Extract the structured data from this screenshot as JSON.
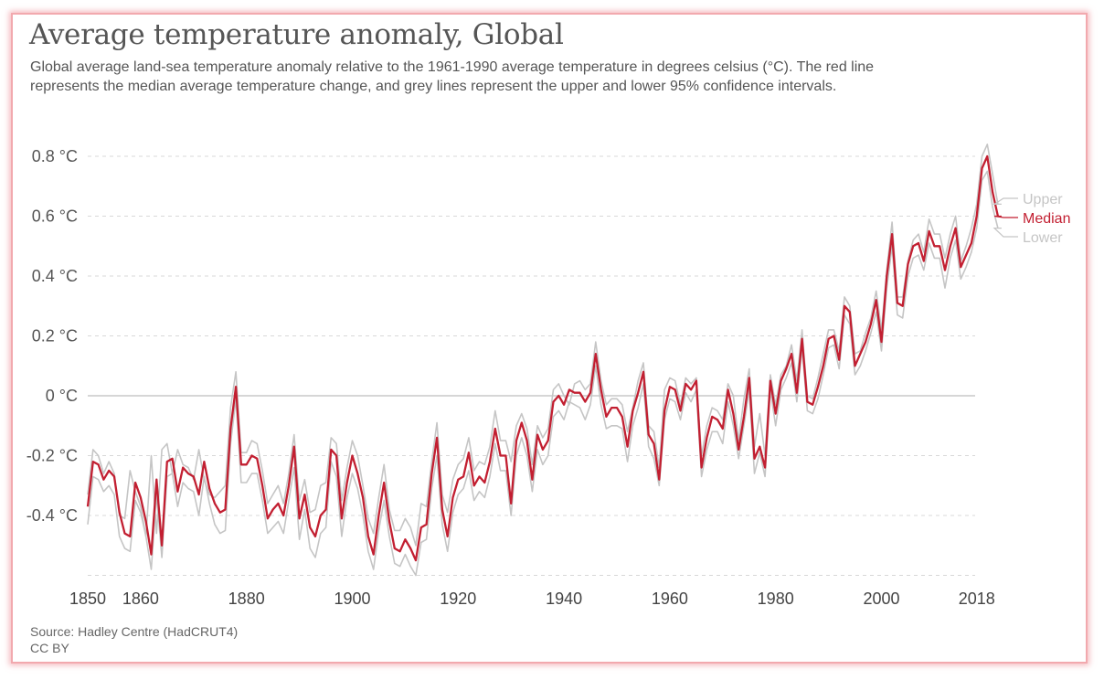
{
  "header": {
    "title": "Average temperature anomaly, Global",
    "subtitle": "Global average land-sea temperature anomaly relative to the 1961-1990 average temperature in degrees celsius (°C). The red line represents the median average temperature change, and grey lines represent the upper and lower 95% confidence intervals."
  },
  "footer": {
    "source": "Source: Hadley Centre (HadCRUT4)",
    "license": "CC BY"
  },
  "colors": {
    "median": "#c21f31",
    "bounds": "#c5c5c5",
    "grid": "#d8d8d8",
    "zero": "#c9c9c9"
  },
  "chart_data": {
    "type": "line",
    "title": "Average temperature anomaly, Global",
    "xlabel": "",
    "ylabel": "",
    "xlim": [
      1850,
      2018
    ],
    "ylim": [
      -0.6,
      0.8
    ],
    "grid": "horizontal dashed",
    "y_ticks": [
      {
        "value": 0.8,
        "label": "0.8 °C"
      },
      {
        "value": 0.6,
        "label": "0.6 °C"
      },
      {
        "value": 0.4,
        "label": "0.4 °C"
      },
      {
        "value": 0.2,
        "label": "0.2 °C"
      },
      {
        "value": 0,
        "label": "0 °C"
      },
      {
        "value": -0.2,
        "label": "-0.2 °C"
      },
      {
        "value": -0.4,
        "label": "-0.4 °C"
      }
    ],
    "x_ticks": [
      {
        "value": 1850,
        "label": "1850"
      },
      {
        "value": 1860,
        "label": "1860"
      },
      {
        "value": 1880,
        "label": "1880"
      },
      {
        "value": 1900,
        "label": "1900"
      },
      {
        "value": 1920,
        "label": "1920"
      },
      {
        "value": 1940,
        "label": "1940"
      },
      {
        "value": 1960,
        "label": "1960"
      },
      {
        "value": 1980,
        "label": "1980"
      },
      {
        "value": 2000,
        "label": "2000"
      },
      {
        "value": 2018,
        "label": "2018"
      }
    ],
    "legend": "right, inline labels",
    "x_start": 1850,
    "series": [
      {
        "name": "Upper",
        "color": "#c5c5c5",
        "values": [
          -0.33,
          -0.18,
          -0.2,
          -0.26,
          -0.22,
          -0.26,
          -0.4,
          -0.41,
          -0.25,
          -0.32,
          -0.37,
          -0.47,
          -0.2,
          -0.46,
          -0.18,
          -0.16,
          -0.26,
          -0.18,
          -0.23,
          -0.24,
          -0.28,
          -0.18,
          -0.28,
          -0.33,
          -0.34,
          -0.32,
          -0.3,
          -0.04,
          0.08,
          -0.19,
          -0.19,
          -0.15,
          -0.16,
          -0.25,
          -0.36,
          -0.33,
          -0.3,
          -0.36,
          -0.26,
          -0.13,
          -0.35,
          -0.28,
          -0.39,
          -0.38,
          -0.3,
          -0.29,
          -0.14,
          -0.16,
          -0.35,
          -0.24,
          -0.15,
          -0.2,
          -0.3,
          -0.41,
          -0.46,
          -0.34,
          -0.23,
          -0.38,
          -0.45,
          -0.45,
          -0.41,
          -0.44,
          -0.5,
          -0.36,
          -0.37,
          -0.22,
          -0.09,
          -0.33,
          -0.39,
          -0.28,
          -0.23,
          -0.21,
          -0.14,
          -0.25,
          -0.22,
          -0.23,
          -0.17,
          -0.05,
          -0.15,
          -0.15,
          -0.22,
          -0.1,
          -0.06,
          -0.11,
          -0.23,
          -0.1,
          -0.14,
          -0.11,
          0.02,
          0.04,
          0.0,
          -0.03,
          0.04,
          0.05,
          0.02,
          0.04,
          0.18,
          0.05,
          -0.03,
          -0.01,
          -0.01,
          -0.03,
          -0.12,
          -0.04,
          0.05,
          0.11,
          -0.1,
          -0.12,
          -0.24,
          0.02,
          0.06,
          0.05,
          -0.03,
          0.06,
          0.04,
          0.06,
          -0.2,
          -0.1,
          -0.04,
          -0.05,
          -0.08,
          0.04,
          0.0,
          -0.15,
          -0.01,
          0.09,
          -0.17,
          -0.06,
          -0.2,
          0.07,
          -0.03,
          0.07,
          0.1,
          0.17,
          0.05,
          0.22,
          0.0,
          -0.01,
          0.06,
          0.14,
          0.22,
          0.22,
          0.15,
          0.33,
          0.3,
          0.14,
          0.15,
          0.21,
          0.26,
          0.35,
          0.22,
          0.42,
          0.58,
          0.33,
          0.33,
          0.45,
          0.52,
          0.54,
          0.48,
          0.59,
          0.54,
          0.54,
          0.46,
          0.54,
          0.6,
          0.45,
          0.5,
          0.56,
          0.64,
          0.8,
          0.84,
          0.74,
          0.64
        ]
      },
      {
        "name": "Median",
        "color": "#c21f31",
        "values": [
          -0.37,
          -0.22,
          -0.23,
          -0.28,
          -0.25,
          -0.27,
          -0.39,
          -0.46,
          -0.47,
          -0.29,
          -0.34,
          -0.42,
          -0.53,
          -0.28,
          -0.5,
          -0.22,
          -0.21,
          -0.32,
          -0.24,
          -0.26,
          -0.27,
          -0.33,
          -0.22,
          -0.31,
          -0.36,
          -0.39,
          -0.38,
          -0.11,
          0.03,
          -0.23,
          -0.23,
          -0.2,
          -0.21,
          -0.3,
          -0.41,
          -0.38,
          -0.36,
          -0.4,
          -0.3,
          -0.17,
          -0.41,
          -0.33,
          -0.44,
          -0.47,
          -0.4,
          -0.38,
          -0.18,
          -0.2,
          -0.41,
          -0.29,
          -0.2,
          -0.26,
          -0.34,
          -0.47,
          -0.53,
          -0.4,
          -0.29,
          -0.42,
          -0.51,
          -0.52,
          -0.48,
          -0.51,
          -0.55,
          -0.44,
          -0.43,
          -0.26,
          -0.14,
          -0.38,
          -0.47,
          -0.34,
          -0.28,
          -0.27,
          -0.19,
          -0.3,
          -0.27,
          -0.29,
          -0.22,
          -0.11,
          -0.2,
          -0.2,
          -0.36,
          -0.15,
          -0.09,
          -0.15,
          -0.28,
          -0.13,
          -0.18,
          -0.15,
          -0.02,
          0.0,
          -0.03,
          0.02,
          0.01,
          0.01,
          -0.02,
          0.01,
          0.14,
          0.02,
          -0.07,
          -0.04,
          -0.04,
          -0.07,
          -0.17,
          -0.05,
          0.01,
          0.08,
          -0.13,
          -0.16,
          -0.28,
          -0.05,
          0.03,
          0.02,
          -0.05,
          0.04,
          0.02,
          0.05,
          -0.24,
          -0.14,
          -0.07,
          -0.08,
          -0.11,
          0.02,
          -0.06,
          -0.18,
          -0.07,
          0.06,
          -0.21,
          -0.17,
          -0.24,
          0.05,
          -0.06,
          0.05,
          0.09,
          0.14,
          0.01,
          0.19,
          -0.02,
          -0.03,
          0.03,
          0.1,
          0.19,
          0.2,
          0.12,
          0.3,
          0.28,
          0.1,
          0.14,
          0.18,
          0.24,
          0.32,
          0.18,
          0.4,
          0.54,
          0.31,
          0.3,
          0.44,
          0.5,
          0.51,
          0.45,
          0.55,
          0.5,
          0.5,
          0.42,
          0.5,
          0.56,
          0.43,
          0.47,
          0.51,
          0.6,
          0.76,
          0.8,
          0.68,
          0.6
        ]
      },
      {
        "name": "Lower",
        "color": "#c5c5c5",
        "values": [
          -0.43,
          -0.27,
          -0.28,
          -0.32,
          -0.3,
          -0.33,
          -0.47,
          -0.51,
          -0.52,
          -0.35,
          -0.39,
          -0.47,
          -0.58,
          -0.33,
          -0.54,
          -0.27,
          -0.26,
          -0.37,
          -0.29,
          -0.31,
          -0.32,
          -0.4,
          -0.27,
          -0.36,
          -0.43,
          -0.46,
          -0.45,
          -0.16,
          -0.01,
          -0.29,
          -0.29,
          -0.26,
          -0.26,
          -0.35,
          -0.46,
          -0.44,
          -0.42,
          -0.46,
          -0.35,
          -0.24,
          -0.48,
          -0.38,
          -0.51,
          -0.54,
          -0.46,
          -0.44,
          -0.22,
          -0.27,
          -0.47,
          -0.34,
          -0.26,
          -0.31,
          -0.4,
          -0.52,
          -0.58,
          -0.45,
          -0.35,
          -0.47,
          -0.56,
          -0.57,
          -0.53,
          -0.57,
          -0.6,
          -0.49,
          -0.48,
          -0.31,
          -0.2,
          -0.43,
          -0.52,
          -0.39,
          -0.33,
          -0.31,
          -0.25,
          -0.35,
          -0.32,
          -0.34,
          -0.27,
          -0.16,
          -0.25,
          -0.25,
          -0.4,
          -0.2,
          -0.14,
          -0.2,
          -0.32,
          -0.18,
          -0.23,
          -0.2,
          -0.07,
          -0.05,
          -0.08,
          -0.02,
          -0.03,
          -0.04,
          -0.08,
          -0.03,
          0.1,
          -0.03,
          -0.11,
          -0.1,
          -0.1,
          -0.11,
          -0.22,
          -0.1,
          -0.04,
          0.04,
          -0.17,
          -0.21,
          -0.3,
          -0.08,
          -0.01,
          -0.02,
          -0.08,
          0.01,
          -0.02,
          0.02,
          -0.27,
          -0.18,
          -0.12,
          -0.12,
          -0.16,
          -0.02,
          -0.1,
          -0.21,
          -0.1,
          0.02,
          -0.26,
          -0.19,
          -0.27,
          0.02,
          -0.1,
          0.02,
          0.06,
          0.11,
          -0.02,
          0.16,
          -0.05,
          -0.06,
          -0.01,
          0.07,
          0.16,
          0.17,
          0.09,
          0.27,
          0.24,
          0.07,
          0.1,
          0.15,
          0.21,
          0.28,
          0.15,
          0.36,
          0.5,
          0.27,
          0.26,
          0.4,
          0.46,
          0.47,
          0.42,
          0.51,
          0.46,
          0.46,
          0.36,
          0.46,
          0.52,
          0.39,
          0.43,
          0.48,
          0.56,
          0.72,
          0.75,
          0.63,
          0.56
        ]
      }
    ]
  }
}
